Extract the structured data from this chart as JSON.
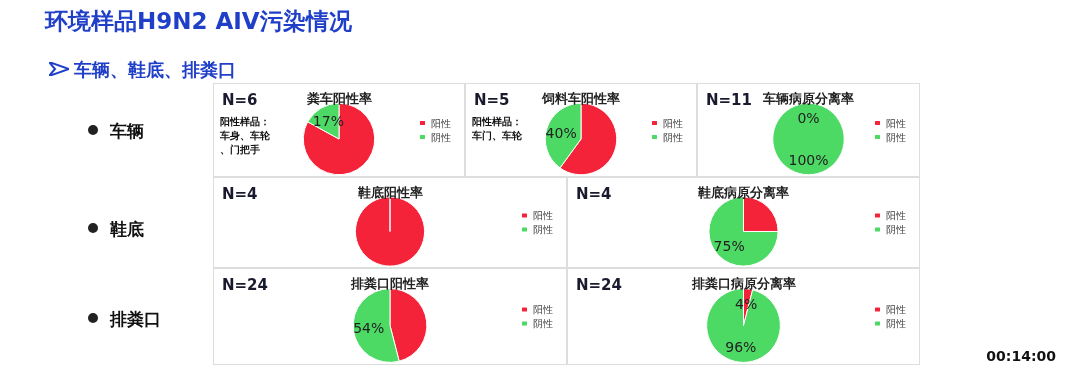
{
  "chart_data": [
    {
      "type": "other",
      "title": "环境样品H9N2 AIV污染情况",
      "subtitle": "车辆、鞋底、排粪口",
      "annotations": [
        "车辆",
        "鞋底",
        "排粪口",
        "00:14:00"
      ]
    },
    {
      "type": "pie",
      "title": "粪车阳性率",
      "categories": [
        "阳性",
        "阴性"
      ],
      "values": [
        83,
        17
      ],
      "colors": [
        "#f5233a",
        "#4cd964"
      ],
      "value_labels": [
        null,
        "17%"
      ],
      "legend": "right",
      "annotations": [
        "N=6",
        "阳性样品：车身、车轮、门把手"
      ]
    },
    {
      "type": "pie",
      "title": "饲料车阳性率",
      "categories": [
        "阳性",
        "阴性"
      ],
      "values": [
        60,
        40
      ],
      "colors": [
        "#f5233a",
        "#4cd964"
      ],
      "value_labels": [
        null,
        "40%"
      ],
      "legend": "right",
      "annotations": [
        "N=5",
        "阳性样品：车门、车轮"
      ]
    },
    {
      "type": "pie",
      "title": "车辆病原分离率",
      "categories": [
        "阳性",
        "阴性"
      ],
      "values": [
        0,
        100
      ],
      "colors": [
        "#f5233a",
        "#4cd964"
      ],
      "value_labels": [
        "0%",
        "100%"
      ],
      "legend": "right",
      "annotations": [
        "N=11"
      ]
    },
    {
      "type": "pie",
      "title": "鞋底阳性率",
      "categories": [
        "阳性",
        "阴性"
      ],
      "values": [
        100,
        0
      ],
      "colors": [
        "#f5233a",
        "#4cd964"
      ],
      "legend": "right",
      "annotations": [
        "N=4"
      ]
    },
    {
      "type": "pie",
      "title": "鞋底病原分离率",
      "categories": [
        "阳性",
        "阴性"
      ],
      "values": [
        25,
        75
      ],
      "colors": [
        "#f5233a",
        "#4cd964"
      ],
      "value_labels": [
        null,
        "75%"
      ],
      "legend": "right",
      "annotations": [
        "N=4"
      ]
    },
    {
      "type": "pie",
      "title": "排粪口阳性率",
      "categories": [
        "阳性",
        "阴性"
      ],
      "values": [
        46,
        54
      ],
      "colors": [
        "#f5233a",
        "#4cd964"
      ],
      "value_labels": [
        null,
        "54%"
      ],
      "legend": "right",
      "annotations": [
        "N=24"
      ]
    },
    {
      "type": "pie",
      "title": "排粪口病原分离率",
      "categories": [
        "阳性",
        "阴性"
      ],
      "values": [
        4,
        96
      ],
      "colors": [
        "#f5233a",
        "#4cd964"
      ],
      "value_labels": [
        "4%",
        "96%"
      ],
      "legend": "right",
      "annotations": [
        "N=24"
      ]
    }
  ]
}
